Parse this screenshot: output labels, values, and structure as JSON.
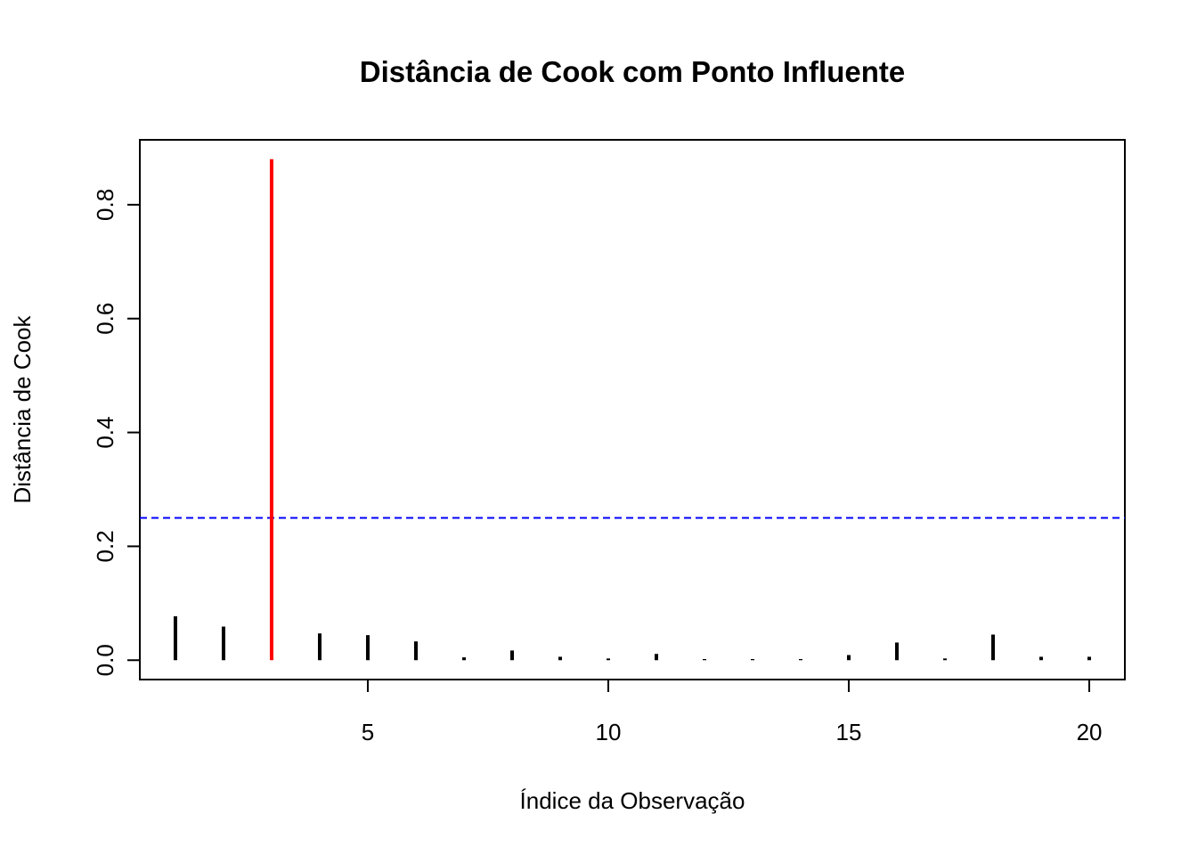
{
  "chart_data": {
    "type": "needle",
    "title": "Distância de Cook com Ponto Influente",
    "x_label": "Índice da Observação",
    "y_label": "Distância de Cook",
    "x": [
      1,
      2,
      3,
      4,
      5,
      6,
      7,
      8,
      9,
      10,
      11,
      12,
      13,
      14,
      15,
      16,
      17,
      18,
      19,
      20
    ],
    "values": [
      0.077,
      0.059,
      0.88,
      0.047,
      0.044,
      0.033,
      0.005,
      0.017,
      0.006,
      0.003,
      0.011,
      0.002,
      0.002,
      0.002,
      0.009,
      0.031,
      0.003,
      0.045,
      0.006,
      0.006
    ],
    "colors": [
      "#000000",
      "#000000",
      "#ff0000",
      "#000000",
      "#000000",
      "#000000",
      "#000000",
      "#000000",
      "#000000",
      "#000000",
      "#000000",
      "#000000",
      "#000000",
      "#000000",
      "#000000",
      "#000000",
      "#000000",
      "#000000",
      "#000000",
      "#000000"
    ],
    "threshold": 0.25,
    "threshold_color": "#0000ff",
    "xlim": [
      0.26,
      20.74
    ],
    "ylim": [
      -0.034,
      0.914
    ],
    "xticks": [
      5,
      10,
      15,
      20
    ],
    "yticks": [
      {
        "value": 0,
        "label": "0.0"
      },
      0.2,
      0.4,
      0.6,
      0.8
    ]
  }
}
